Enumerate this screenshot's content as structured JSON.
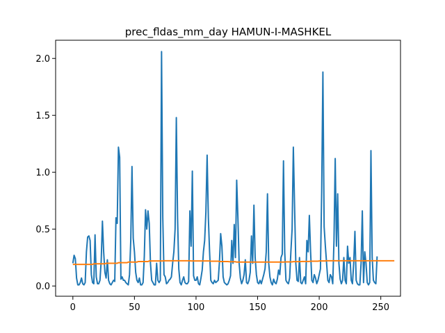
{
  "chart_data": {
    "type": "line",
    "title": "prec_fldas_mm_day HAMUN-I-MASHKEL",
    "xlabel": "",
    "ylabel": "",
    "xlim": [
      -14,
      266
    ],
    "ylim": [
      -0.09,
      2.16
    ],
    "x_ticks": [
      0,
      50,
      100,
      150,
      200,
      250
    ],
    "y_ticks": [
      0.0,
      0.5,
      1.0,
      1.5,
      2.0
    ],
    "y_tick_labels": [
      "0.0",
      "0.5",
      "1.0",
      "1.5",
      "2.0"
    ],
    "grid": false,
    "legend": "none",
    "series": [
      {
        "color": "#1f77b4",
        "values": [
          0.2,
          0.27,
          0.24,
          0.07,
          0.01,
          0.01,
          0.03,
          0.07,
          0.02,
          0.01,
          0.03,
          0.3,
          0.43,
          0.44,
          0.4,
          0.1,
          0.03,
          0.02,
          0.45,
          0.08,
          0.02,
          0.02,
          0.05,
          0.22,
          0.57,
          0.3,
          0.12,
          0.07,
          0.23,
          0.05,
          0.02,
          0.01,
          0.03,
          0.05,
          0.04,
          0.6,
          0.55,
          1.22,
          1.13,
          0.06,
          0.08,
          0.05,
          0.05,
          0.03,
          0.02,
          0.01,
          0.1,
          0.4,
          1.05,
          0.42,
          0.3,
          0.12,
          0.05,
          0.03,
          0.07,
          0.01,
          0.01,
          0.03,
          0.26,
          0.67,
          0.5,
          0.66,
          0.55,
          0.2,
          0.05,
          0.03,
          0.01,
          0.01,
          0.2,
          0.05,
          0.03,
          0.05,
          2.06,
          0.6,
          0.1,
          0.08,
          0.02,
          0.03,
          0.05,
          0.06,
          0.08,
          0.2,
          0.3,
          0.5,
          1.48,
          0.6,
          0.15,
          0.03,
          0.01,
          0.05,
          0.08,
          0.03,
          0.02,
          0.02,
          0.04,
          0.66,
          0.35,
          1.01,
          0.09,
          0.05,
          0.05,
          0.08,
          0.02,
          0.01,
          0.07,
          0.14,
          0.3,
          0.4,
          0.65,
          1.15,
          0.6,
          0.3,
          0.05,
          0.03,
          0.02,
          0.05,
          0.03,
          0.04,
          0.05,
          0.21,
          0.46,
          0.35,
          0.08,
          0.03,
          0.02,
          0.01,
          0.02,
          0.05,
          0.09,
          0.4,
          0.2,
          0.54,
          0.25,
          0.93,
          0.6,
          0.2,
          0.07,
          0.02,
          0.05,
          0.1,
          0.23,
          0.03,
          0.02,
          0.05,
          0.12,
          0.44,
          0.2,
          0.71,
          0.25,
          0.1,
          0.03,
          0.02,
          0.05,
          0.02,
          0.06,
          0.1,
          0.15,
          0.3,
          0.81,
          0.2,
          0.08,
          0.03,
          0.01,
          0.06,
          0.03,
          0.02,
          0.06,
          0.14,
          0.1,
          0.25,
          0.28,
          1.1,
          0.3,
          0.05,
          0.03,
          0.02,
          0.07,
          0.3,
          0.5,
          1.22,
          0.7,
          0.2,
          0.05,
          0.04,
          0.25,
          0.03,
          0.02,
          0.05,
          0.08,
          0.02,
          0.4,
          0.3,
          0.62,
          0.3,
          0.05,
          0.03,
          0.1,
          0.07,
          0.02,
          0.05,
          0.1,
          0.15,
          0.82,
          1.88,
          0.52,
          0.35,
          0.2,
          0.05,
          0.03,
          0.1,
          0.08,
          0.02,
          0.4,
          1.12,
          0.35,
          0.81,
          0.2,
          0.06,
          0.02,
          0.05,
          0.25,
          0.05,
          0.02,
          0.35,
          0.2,
          0.25,
          0.05,
          0.02,
          0.2,
          0.48,
          0.05,
          0.02,
          0.01,
          0.01,
          0.2,
          0.66,
          0.03,
          0.3,
          0.2,
          0.03,
          0.01,
          0.03,
          1.19,
          0.25,
          0.05,
          0.03,
          0.02,
          0.26
        ]
      },
      {
        "color": "#ff7f0e",
        "values": [
          0.19,
          0.19,
          0.19,
          0.19,
          0.19,
          0.19,
          0.19,
          0.19,
          0.19,
          0.19,
          0.19,
          0.19,
          0.19,
          0.19,
          0.19,
          0.19,
          0.19,
          0.195,
          0.195,
          0.195,
          0.195,
          0.195,
          0.195,
          0.195,
          0.195,
          0.195,
          0.195,
          0.2,
          0.2,
          0.2,
          0.2,
          0.2,
          0.2,
          0.2,
          0.2,
          0.2,
          0.2,
          0.205,
          0.205,
          0.205,
          0.205,
          0.205,
          0.205,
          0.205,
          0.205,
          0.21,
          0.21,
          0.21,
          0.21,
          0.21,
          0.21,
          0.21,
          0.21,
          0.215,
          0.215,
          0.215,
          0.215,
          0.215,
          0.215,
          0.215,
          0.215,
          0.215,
          0.22,
          0.22,
          0.22,
          0.22,
          0.22,
          0.22,
          0.22,
          0.22,
          0.22,
          0.22,
          0.22,
          0.22,
          0.222,
          0.222,
          0.222,
          0.222,
          0.222,
          0.222,
          0.222,
          0.222,
          0.222,
          0.222,
          0.222,
          0.222,
          0.222,
          0.222,
          0.222,
          0.222,
          0.222,
          0.222,
          0.222,
          0.222,
          0.222,
          0.222,
          0.22,
          0.22,
          0.22,
          0.22,
          0.22,
          0.22,
          0.22,
          0.22,
          0.22,
          0.22,
          0.22,
          0.22,
          0.22,
          0.22,
          0.22,
          0.22,
          0.218,
          0.218,
          0.218,
          0.218,
          0.218,
          0.218,
          0.218,
          0.215,
          0.215,
          0.215,
          0.215,
          0.215,
          0.215,
          0.215,
          0.215,
          0.213,
          0.213,
          0.213,
          0.213,
          0.213,
          0.213,
          0.21,
          0.21,
          0.21,
          0.21,
          0.21,
          0.21,
          0.21,
          0.21,
          0.21,
          0.21,
          0.21,
          0.21,
          0.21,
          0.21,
          0.21,
          0.21,
          0.21,
          0.21,
          0.21,
          0.21,
          0.21,
          0.21,
          0.21,
          0.21,
          0.21,
          0.21,
          0.21,
          0.21,
          0.21,
          0.21,
          0.21,
          0.21,
          0.21,
          0.21,
          0.21,
          0.21,
          0.21,
          0.21,
          0.21,
          0.212,
          0.212,
          0.212,
          0.212,
          0.212,
          0.212,
          0.212,
          0.214,
          0.214,
          0.214,
          0.214,
          0.214,
          0.214,
          0.214,
          0.216,
          0.216,
          0.216,
          0.216,
          0.216,
          0.216,
          0.216,
          0.218,
          0.218,
          0.218,
          0.218,
          0.218,
          0.218,
          0.218,
          0.22,
          0.22,
          0.22,
          0.22,
          0.22,
          0.22,
          0.222,
          0.222,
          0.222,
          0.222,
          0.222,
          0.222,
          0.222,
          0.222,
          0.222,
          0.222,
          0.222,
          0.222,
          0.222,
          0.222,
          0.222,
          0.222,
          0.222,
          0.222,
          0.222,
          0.222,
          0.222,
          0.222,
          0.222,
          0.222,
          0.222,
          0.222,
          0.222,
          0.222,
          0.222,
          0.222,
          0.222,
          0.222,
          0.222,
          0.222,
          0.222,
          0.222,
          0.222,
          0.222,
          0.222,
          0.222,
          0.222,
          0.222,
          0.222,
          0.222,
          0.222,
          0.222,
          0.222,
          0.222,
          0.222,
          0.222,
          0.222,
          0.222,
          0.222,
          0.222,
          0.222,
          0.222
        ]
      }
    ]
  }
}
